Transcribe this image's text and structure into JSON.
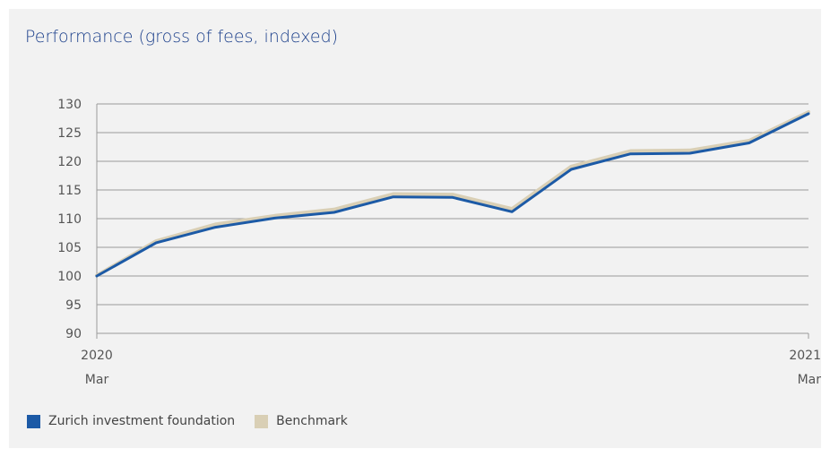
{
  "title": "Performance (gross of fees, indexed)",
  "colors": {
    "fund": "#1c5aa6",
    "benchmark": "#d9cfb5",
    "grid": "#9a9a9a",
    "title": "#1b3f8b"
  },
  "legend": {
    "fund_label": "Zurich investment foundation",
    "benchmark_label": "Benchmark"
  },
  "chart_data": {
    "type": "line",
    "title": "Performance (gross of fees, indexed)",
    "xlabel": "",
    "ylabel": "",
    "ylim": [
      90,
      130
    ],
    "yticks": [
      90,
      95,
      100,
      105,
      110,
      115,
      120,
      125,
      130
    ],
    "grid": true,
    "legend_position": "bottom-left",
    "x_labels": [
      {
        "year": "2020",
        "month": "Mar"
      },
      {
        "year": "2021",
        "month": "Mar"
      }
    ],
    "x": [
      "2020-03",
      "2020-04",
      "2020-05",
      "2020-06",
      "2020-07",
      "2020-08",
      "2020-09",
      "2020-10",
      "2020-11",
      "2020-12",
      "2021-01",
      "2021-02",
      "2021-03"
    ],
    "series": [
      {
        "name": "Zurich investment foundation",
        "values": [
          100.0,
          105.8,
          108.5,
          110.1,
          111.1,
          113.8,
          113.7,
          111.2,
          118.6,
          121.3,
          121.4,
          123.2,
          128.3
        ]
      },
      {
        "name": "Benchmark",
        "values": [
          100.1,
          106.1,
          109.0,
          110.5,
          111.6,
          114.3,
          114.2,
          111.7,
          119.1,
          121.8,
          121.9,
          123.6,
          128.6
        ]
      }
    ]
  }
}
